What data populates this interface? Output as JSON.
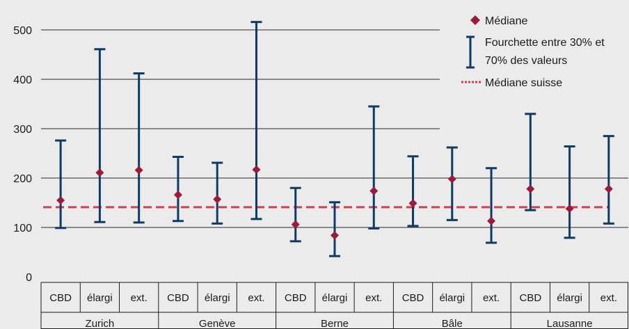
{
  "chart_data": {
    "type": "errorbar",
    "title": "",
    "xlabel": "",
    "ylabel": "",
    "ylim": [
      0,
      520
    ],
    "yticks": [
      0,
      100,
      200,
      300,
      400,
      500
    ],
    "grid": true,
    "legend_position": "top-right",
    "groups": [
      "Zurich",
      "Genève",
      "Berne",
      "Bâle",
      "Lausanne"
    ],
    "subcategories": [
      "CBD",
      "élargi",
      "ext."
    ],
    "series": [
      {
        "name": "Médiane",
        "values": [
          155,
          211,
          216,
          166,
          157,
          217,
          106,
          84,
          174,
          149,
          198,
          113,
          178,
          138,
          178
        ]
      },
      {
        "name": "Fourchette entre 30% et 70% des valeurs",
        "low": [
          99,
          111,
          110,
          113,
          108,
          117,
          72,
          42,
          98,
          103,
          115,
          69,
          135,
          79,
          108
        ],
        "high": [
          276,
          461,
          412,
          243,
          231,
          516,
          180,
          151,
          345,
          244,
          262,
          220,
          330,
          264,
          285
        ]
      },
      {
        "name": "Médiane suisse",
        "value": 141
      }
    ],
    "legend": {
      "median": "Médiane",
      "range_line1": "Fourchette entre 30% et",
      "range_line2": "70% des valeurs",
      "swiss_median": "Médiane suisse"
    },
    "colors": {
      "background": "#ebebeb",
      "median": "#9b1b3a",
      "range": "#0f3a66",
      "swiss_median": "#c9444e",
      "grid": "#2a2a2a",
      "table_border": "#1a1a1a"
    }
  }
}
